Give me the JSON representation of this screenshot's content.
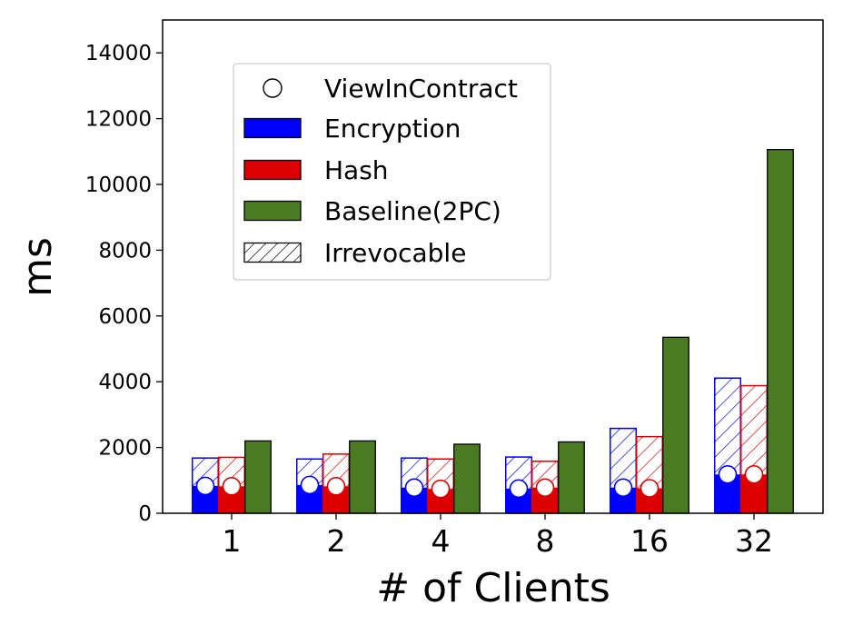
{
  "chart_data": {
    "type": "bar",
    "xlabel": "# of Clients",
    "ylabel": "ms",
    "ylim": [
      0,
      15000
    ],
    "yticks": [
      0,
      2000,
      4000,
      6000,
      8000,
      10000,
      12000,
      14000
    ],
    "categories": [
      "1",
      "2",
      "4",
      "8",
      "16",
      "32"
    ],
    "grid": false,
    "legend_position": "top-left",
    "series": [
      {
        "name": "Encryption",
        "color": "#0000ff",
        "total": [
          1680,
          1650,
          1680,
          1710,
          2580,
          4110
        ],
        "view_in_contract": [
          830,
          860,
          780,
          750,
          780,
          1180
        ]
      },
      {
        "name": "Hash",
        "color": "#dd0000",
        "total": [
          1700,
          1800,
          1650,
          1580,
          2330,
          3880
        ],
        "view_in_contract": [
          820,
          820,
          740,
          780,
          760,
          1180
        ]
      },
      {
        "name": "Baseline(2PC)",
        "color": "#4a7a22",
        "total": [
          2200,
          2200,
          2100,
          2170,
          5350,
          11060
        ]
      }
    ],
    "legend": [
      {
        "label": "ViewInContract",
        "kind": "circle"
      },
      {
        "label": "Encryption",
        "kind": "patch",
        "color": "#0000ff"
      },
      {
        "label": "Hash",
        "kind": "patch",
        "color": "#dd0000"
      },
      {
        "label": "Baseline(2PC)",
        "kind": "patch",
        "color": "#4a7a22"
      },
      {
        "label": "Irrevocable",
        "kind": "hatch"
      }
    ]
  }
}
